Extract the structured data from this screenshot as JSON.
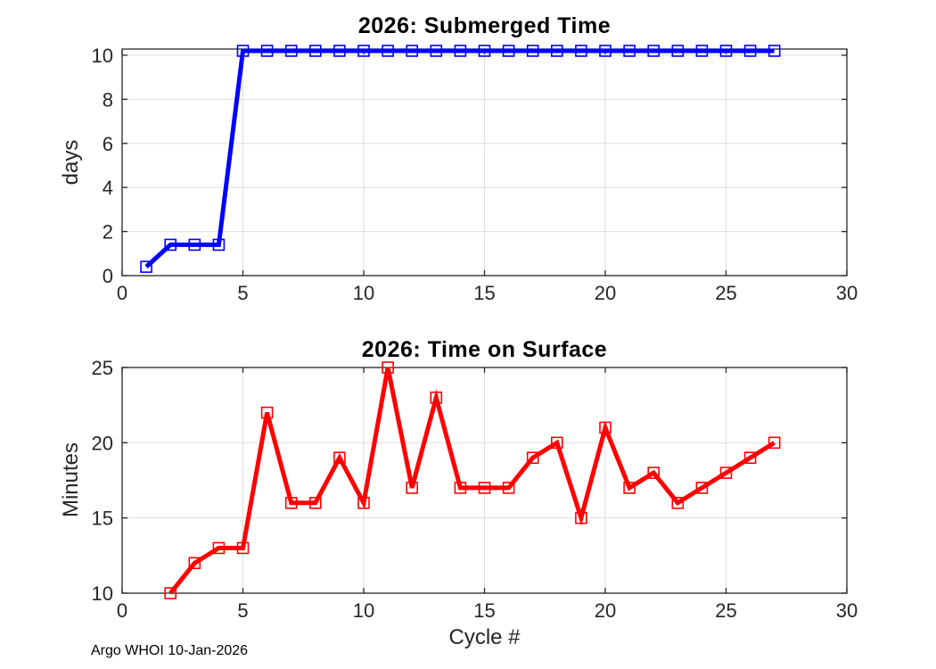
{
  "figure": {
    "credit": "Argo WHOI 10-Jan-2026"
  },
  "chart_data": [
    {
      "type": "line",
      "title": "2026: Submerged Time",
      "xlabel": "",
      "ylabel": "days",
      "line_color": "#0000FF",
      "marker": "open-square",
      "grid": true,
      "xlim": [
        0,
        30
      ],
      "ylim": [
        0,
        10.28
      ],
      "xticks": [
        0,
        5,
        10,
        15,
        20,
        25,
        30
      ],
      "yticks": [
        0,
        2,
        4,
        6,
        8,
        10
      ],
      "x": [
        1,
        2,
        3,
        4,
        5,
        6,
        7,
        8,
        9,
        10,
        11,
        12,
        13,
        14,
        15,
        16,
        17,
        18,
        19,
        20,
        21,
        22,
        23,
        24,
        25,
        26,
        27
      ],
      "y": [
        0.4,
        1.4,
        1.4,
        1.4,
        10.2,
        10.2,
        10.2,
        10.2,
        10.2,
        10.2,
        10.2,
        10.2,
        10.2,
        10.2,
        10.2,
        10.2,
        10.2,
        10.2,
        10.2,
        10.2,
        10.2,
        10.2,
        10.2,
        10.2,
        10.2,
        10.2,
        10.2
      ]
    },
    {
      "type": "line",
      "title": "2026: Time on Surface",
      "xlabel": "Cycle #",
      "ylabel": "Minutes",
      "line_color": "#FF0000",
      "marker": "open-square",
      "grid": true,
      "xlim": [
        0,
        30
      ],
      "ylim": [
        10,
        25
      ],
      "xticks": [
        0,
        5,
        10,
        15,
        20,
        25,
        30
      ],
      "yticks": [
        10,
        15,
        20,
        25
      ],
      "x": [
        2,
        3,
        4,
        5,
        6,
        7,
        8,
        9,
        10,
        11,
        12,
        13,
        14,
        15,
        16,
        17,
        18,
        19,
        20,
        21,
        22,
        23,
        24,
        25,
        26,
        27
      ],
      "y": [
        10,
        12,
        13,
        13,
        22,
        16,
        16,
        19,
        16,
        25,
        17,
        23,
        17,
        17,
        17,
        19,
        20,
        15,
        21,
        17,
        18,
        16,
        17,
        18,
        19,
        20
      ]
    }
  ]
}
